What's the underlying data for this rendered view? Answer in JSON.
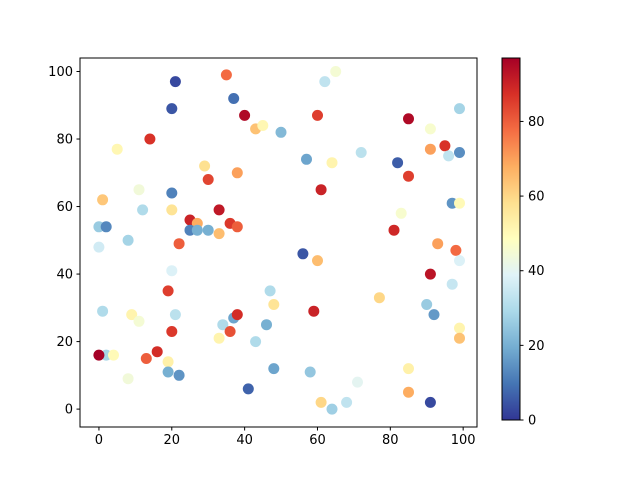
{
  "figure": {
    "background": "#ffffff",
    "axes_edge_color": "#000000",
    "tick_color": "#000000"
  },
  "chart_data": {
    "type": "scatter",
    "title": "",
    "xlabel": "",
    "ylabel": "",
    "grid": false,
    "legend": "none",
    "x_ticks": [
      0,
      20,
      40,
      60,
      80,
      100
    ],
    "y_ticks": [
      0,
      20,
      40,
      60,
      80,
      100
    ],
    "xlim": [
      -5.2,
      103.8
    ],
    "ylim": [
      -5.3,
      104.0
    ],
    "marker_diameter_px": 11,
    "colormap": {
      "name": "RdYlBu_r",
      "stops": [
        "#313695",
        "#4575b4",
        "#74add1",
        "#abd9e9",
        "#e0f3f8",
        "#ffffbf",
        "#fee090",
        "#fdae61",
        "#f46d43",
        "#d73027",
        "#a50026"
      ]
    },
    "colorbar": {
      "position": "right",
      "vmin": 0,
      "vmax": 97,
      "ticks": [
        0,
        20,
        40,
        60,
        80
      ]
    },
    "points": [
      [
        35,
        99,
        78
      ],
      [
        21,
        97,
        3
      ],
      [
        37,
        92,
        9
      ],
      [
        20,
        89,
        5
      ],
      [
        40,
        87,
        95
      ],
      [
        14,
        80,
        87
      ],
      [
        43,
        83,
        64
      ],
      [
        45,
        84,
        51
      ],
      [
        50,
        82,
        22
      ],
      [
        5,
        77,
        51
      ],
      [
        29,
        72,
        58
      ],
      [
        38,
        70,
        70
      ],
      [
        30,
        68,
        84
      ],
      [
        11,
        65,
        44
      ],
      [
        20,
        64,
        12
      ],
      [
        1,
        62,
        63
      ],
      [
        12,
        59,
        30
      ],
      [
        20,
        59,
        57
      ],
      [
        33,
        59,
        92
      ],
      [
        0,
        54,
        26
      ],
      [
        2,
        54,
        13
      ],
      [
        25,
        56,
        90
      ],
      [
        27,
        55,
        68
      ],
      [
        25,
        53,
        12
      ],
      [
        27,
        53,
        20
      ],
      [
        30,
        53,
        20
      ],
      [
        33,
        52,
        65
      ],
      [
        36,
        55,
        86
      ],
      [
        38,
        54,
        80
      ],
      [
        8,
        50,
        28
      ],
      [
        0,
        48,
        36
      ],
      [
        62,
        97,
        33
      ],
      [
        65,
        100,
        45
      ],
      [
        60,
        87,
        85
      ],
      [
        85,
        86,
        95
      ],
      [
        91,
        83,
        46
      ],
      [
        99,
        89,
        28
      ],
      [
        91,
        77,
        70
      ],
      [
        95,
        78,
        87
      ],
      [
        96,
        75,
        33
      ],
      [
        99,
        76,
        14
      ],
      [
        57,
        74,
        18
      ],
      [
        64,
        73,
        52
      ],
      [
        72,
        76,
        32
      ],
      [
        82,
        73,
        6
      ],
      [
        85,
        69,
        85
      ],
      [
        61,
        65,
        90
      ],
      [
        97,
        61,
        15
      ],
      [
        99,
        61,
        50
      ],
      [
        83,
        58,
        46
      ],
      [
        81,
        53,
        89
      ],
      [
        22,
        49,
        80
      ],
      [
        20,
        41,
        38
      ],
      [
        19,
        35,
        85
      ],
      [
        1,
        29,
        30
      ],
      [
        9,
        28,
        52
      ],
      [
        11,
        26,
        45
      ],
      [
        21,
        28,
        32
      ],
      [
        20,
        23,
        86
      ],
      [
        2,
        16,
        28
      ],
      [
        0,
        16,
        97
      ],
      [
        4,
        16,
        50
      ],
      [
        13,
        15,
        80
      ],
      [
        16,
        17,
        88
      ],
      [
        19,
        14,
        53
      ],
      [
        19,
        11,
        20
      ],
      [
        22,
        10,
        15
      ],
      [
        8,
        9,
        44
      ],
      [
        47,
        35,
        30
      ],
      [
        48,
        31,
        57
      ],
      [
        34,
        25,
        30
      ],
      [
        37,
        27,
        18
      ],
      [
        38,
        28,
        88
      ],
      [
        36,
        23,
        82
      ],
      [
        33,
        21,
        52
      ],
      [
        43,
        20,
        30
      ],
      [
        46,
        25,
        20
      ],
      [
        48,
        12,
        18
      ],
      [
        41,
        6,
        7
      ],
      [
        56,
        46,
        5
      ],
      [
        60,
        44,
        65
      ],
      [
        93,
        49,
        70
      ],
      [
        98,
        47,
        78
      ],
      [
        99,
        44,
        38
      ],
      [
        91,
        40,
        93
      ],
      [
        97,
        37,
        34
      ],
      [
        77,
        33,
        60
      ],
      [
        90,
        31,
        26
      ],
      [
        92,
        28,
        16
      ],
      [
        99,
        24,
        52
      ],
      [
        99,
        21,
        64
      ],
      [
        85,
        12,
        53
      ],
      [
        58,
        11,
        25
      ],
      [
        71,
        8,
        40
      ],
      [
        85,
        5,
        68
      ],
      [
        91,
        2,
        3
      ],
      [
        61,
        2,
        60
      ],
      [
        64,
        0,
        27
      ],
      [
        68,
        2,
        33
      ],
      [
        59,
        29,
        90
      ]
    ]
  }
}
